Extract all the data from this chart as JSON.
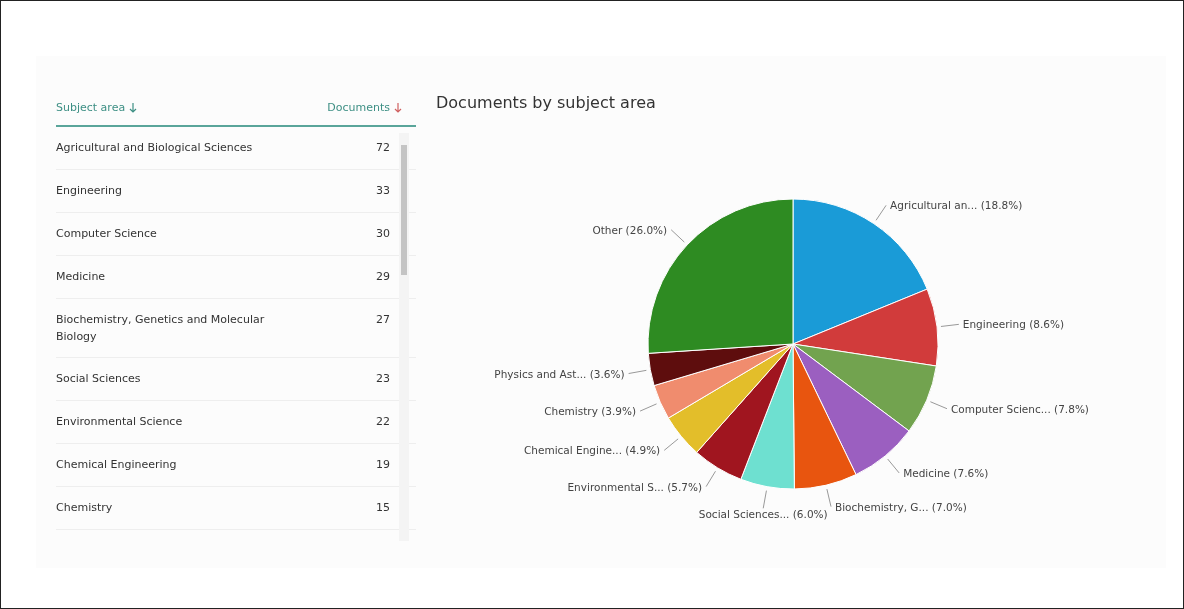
{
  "chart_data": [
    {
      "type": "other",
      "annotations": [
        "Subject area",
        "Documents"
      ],
      "categories": [
        "Agricultural and Biological Sciences",
        "Engineering",
        "Computer Science",
        "Medicine",
        "Biochemistry, Genetics and Molecular Biology",
        "Social Sciences",
        "Environmental Science",
        "Chemical Engineering",
        "Chemistry"
      ],
      "values": [
        72,
        33,
        30,
        29,
        27,
        23,
        22,
        19,
        15
      ],
      "data_labels": true
    },
    {
      "type": "pie",
      "title": "Documents by subject area",
      "categories": [
        "Agricultural an... (18.8%)",
        "Engineering (8.6%)",
        "Computer Scienc... (7.8%)",
        "Medicine (7.6%)",
        "Biochemistry, G... (7.0%)",
        "Social Sciences... (6.0%)",
        "Environmental S... (5.7%)",
        "Chemical Engine... (4.9%)",
        "Chemistry (3.9%)",
        "Physics and Ast... (3.6%)",
        "Other (26.0%)"
      ],
      "values": [
        18.8,
        8.6,
        7.8,
        7.6,
        7.0,
        6.0,
        5.7,
        4.9,
        3.9,
        3.6,
        26.0
      ],
      "colors": [
        "#1a9bd7",
        "#d13b3b",
        "#72a34f",
        "#9b5fc0",
        "#e8550f",
        "#6ee0d0",
        "#a0151f",
        "#e3be2a",
        "#f08c6e",
        "#5e0d0d",
        "#2e8b22"
      ]
    }
  ]
}
